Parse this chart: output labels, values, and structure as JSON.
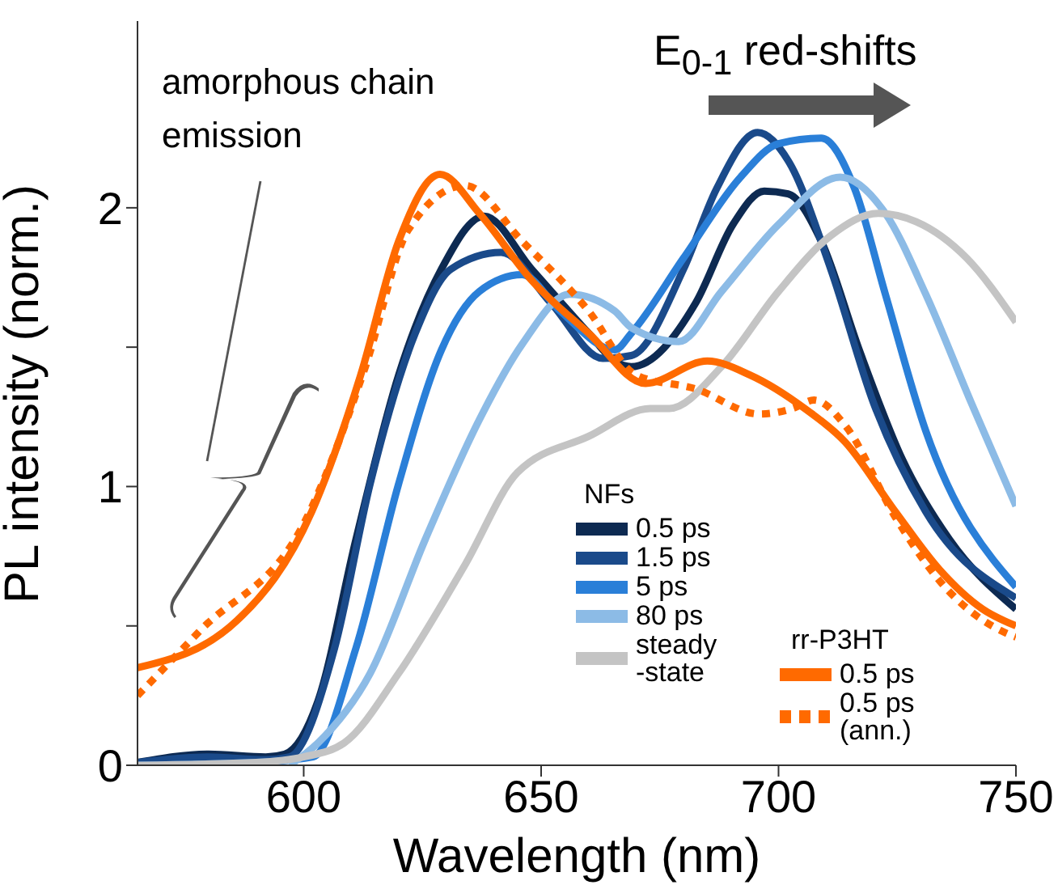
{
  "chart_data": {
    "type": "line",
    "xlabel": "Wavelength (nm)",
    "ylabel": "PL intensity (norm.)",
    "xlim": [
      565,
      750
    ],
    "xticks": [
      600,
      650,
      700,
      750
    ],
    "ylim": [
      0,
      2.67
    ],
    "yticks": [
      0,
      {
        "value": 0.5,
        "label": null
      },
      1,
      {
        "value": 1.5,
        "label": null
      },
      2
    ],
    "tick_labels": "xy",
    "grid": false,
    "legend": "bottom right",
    "marker": "none",
    "annotations": [
      "amorphous chain emission",
      "E$_{0-1}$ red-shifts",
      "NFs",
      "rr-P3HT"
    ],
    "series": [
      {
        "name": "0.5 ps",
        "color": "#0d2a52",
        "x": [
          565,
          580,
          592,
          596,
          603,
          611,
          620,
          629,
          638,
          648,
          660,
          665.5,
          669,
          682.6,
          690.4,
          697,
          702,
          709,
          717,
          726,
          736,
          750
        ],
        "values": [
          0.01,
          0.04,
          0.03,
          0.04,
          0.23,
          0.81,
          1.4,
          1.78,
          1.97,
          1.78,
          1.55,
          1.45,
          1.43,
          1.66,
          1.94,
          2.06,
          2.05,
          1.88,
          1.49,
          1.1,
          0.81,
          0.56
        ]
      },
      {
        "name": "1.5 ps",
        "color": "#1a4a8a",
        "x": [
          565,
          580,
          592,
          597,
          606.5,
          614,
          623.5,
          631,
          641.6,
          652,
          663,
          669,
          680,
          687,
          695.6,
          702,
          711,
          720,
          731,
          750
        ],
        "values": [
          0.01,
          0.03,
          0.02,
          0.03,
          0.42,
          1.01,
          1.55,
          1.78,
          1.84,
          1.66,
          1.46,
          1.47,
          1.78,
          2.07,
          2.27,
          2.17,
          1.78,
          1.3,
          0.91,
          0.6
        ]
      },
      {
        "name": "5 ps",
        "color": "#2a7fd8",
        "x": [
          565,
          590,
          602,
          611,
          620,
          629,
          637,
          646,
          654,
          665.5,
          669,
          680,
          692,
          700,
          709,
          716,
          722.5,
          731,
          750
        ],
        "values": [
          0.0,
          0.01,
          0.03,
          0.42,
          1.01,
          1.49,
          1.7,
          1.76,
          1.63,
          1.49,
          1.55,
          1.82,
          2.11,
          2.23,
          2.25,
          2.07,
          1.69,
          1.2,
          0.64
        ]
      },
      {
        "name": "80 ps",
        "color": "#8cbbe6",
        "x": [
          597,
          603,
          614,
          625.6,
          637,
          646,
          656,
          665.5,
          669,
          679,
          688,
          700,
          713,
          722.5,
          731,
          740.6,
          750
        ],
        "values": [
          0.0,
          0.08,
          0.33,
          0.81,
          1.24,
          1.51,
          1.69,
          1.63,
          1.57,
          1.52,
          1.7,
          1.94,
          2.11,
          1.98,
          1.69,
          1.3,
          0.93
        ]
      },
      {
        "name": "steady -state",
        "color": "#c4c4c4",
        "x": [
          565,
          590,
          600,
          608.5,
          620,
          634,
          645,
          660,
          673,
          677,
          688,
          700,
          711,
          721,
          729,
          739.6,
          750
        ],
        "values": [
          0.0,
          0.01,
          0.03,
          0.08,
          0.33,
          0.72,
          1.05,
          1.18,
          1.28,
          1.28,
          1.43,
          1.7,
          1.9,
          1.98,
          1.95,
          1.82,
          1.59
        ]
      },
      {
        "name": "0.5 ps",
        "color": "#ff6a00",
        "line_style": "solid",
        "x": [
          565,
          586,
          601.7,
          612,
          620,
          628.7,
          637,
          648,
          660,
          672,
          685,
          694,
          705.5,
          714,
          724.6,
          734,
          743,
          750
        ],
        "values": [
          0.35,
          0.52,
          0.91,
          1.4,
          1.88,
          2.12,
          1.98,
          1.74,
          1.55,
          1.37,
          1.45,
          1.4,
          1.28,
          1.16,
          0.91,
          0.7,
          0.56,
          0.5
        ]
      },
      {
        "name": "0.5 ps (ann.)",
        "color": "#ff6a00",
        "line_style": "dotted",
        "x": [
          565,
          578,
          600.7,
          613,
          622,
          634,
          646,
          660,
          670,
          682.6,
          696,
          703,
          707.5,
          714,
          724.6,
          734,
          748.5,
          750
        ],
        "values": [
          0.25,
          0.48,
          0.89,
          1.43,
          1.92,
          2.08,
          1.88,
          1.63,
          1.4,
          1.35,
          1.26,
          1.28,
          1.31,
          1.22,
          0.89,
          0.66,
          0.47,
          0.46
        ]
      }
    ]
  }
}
